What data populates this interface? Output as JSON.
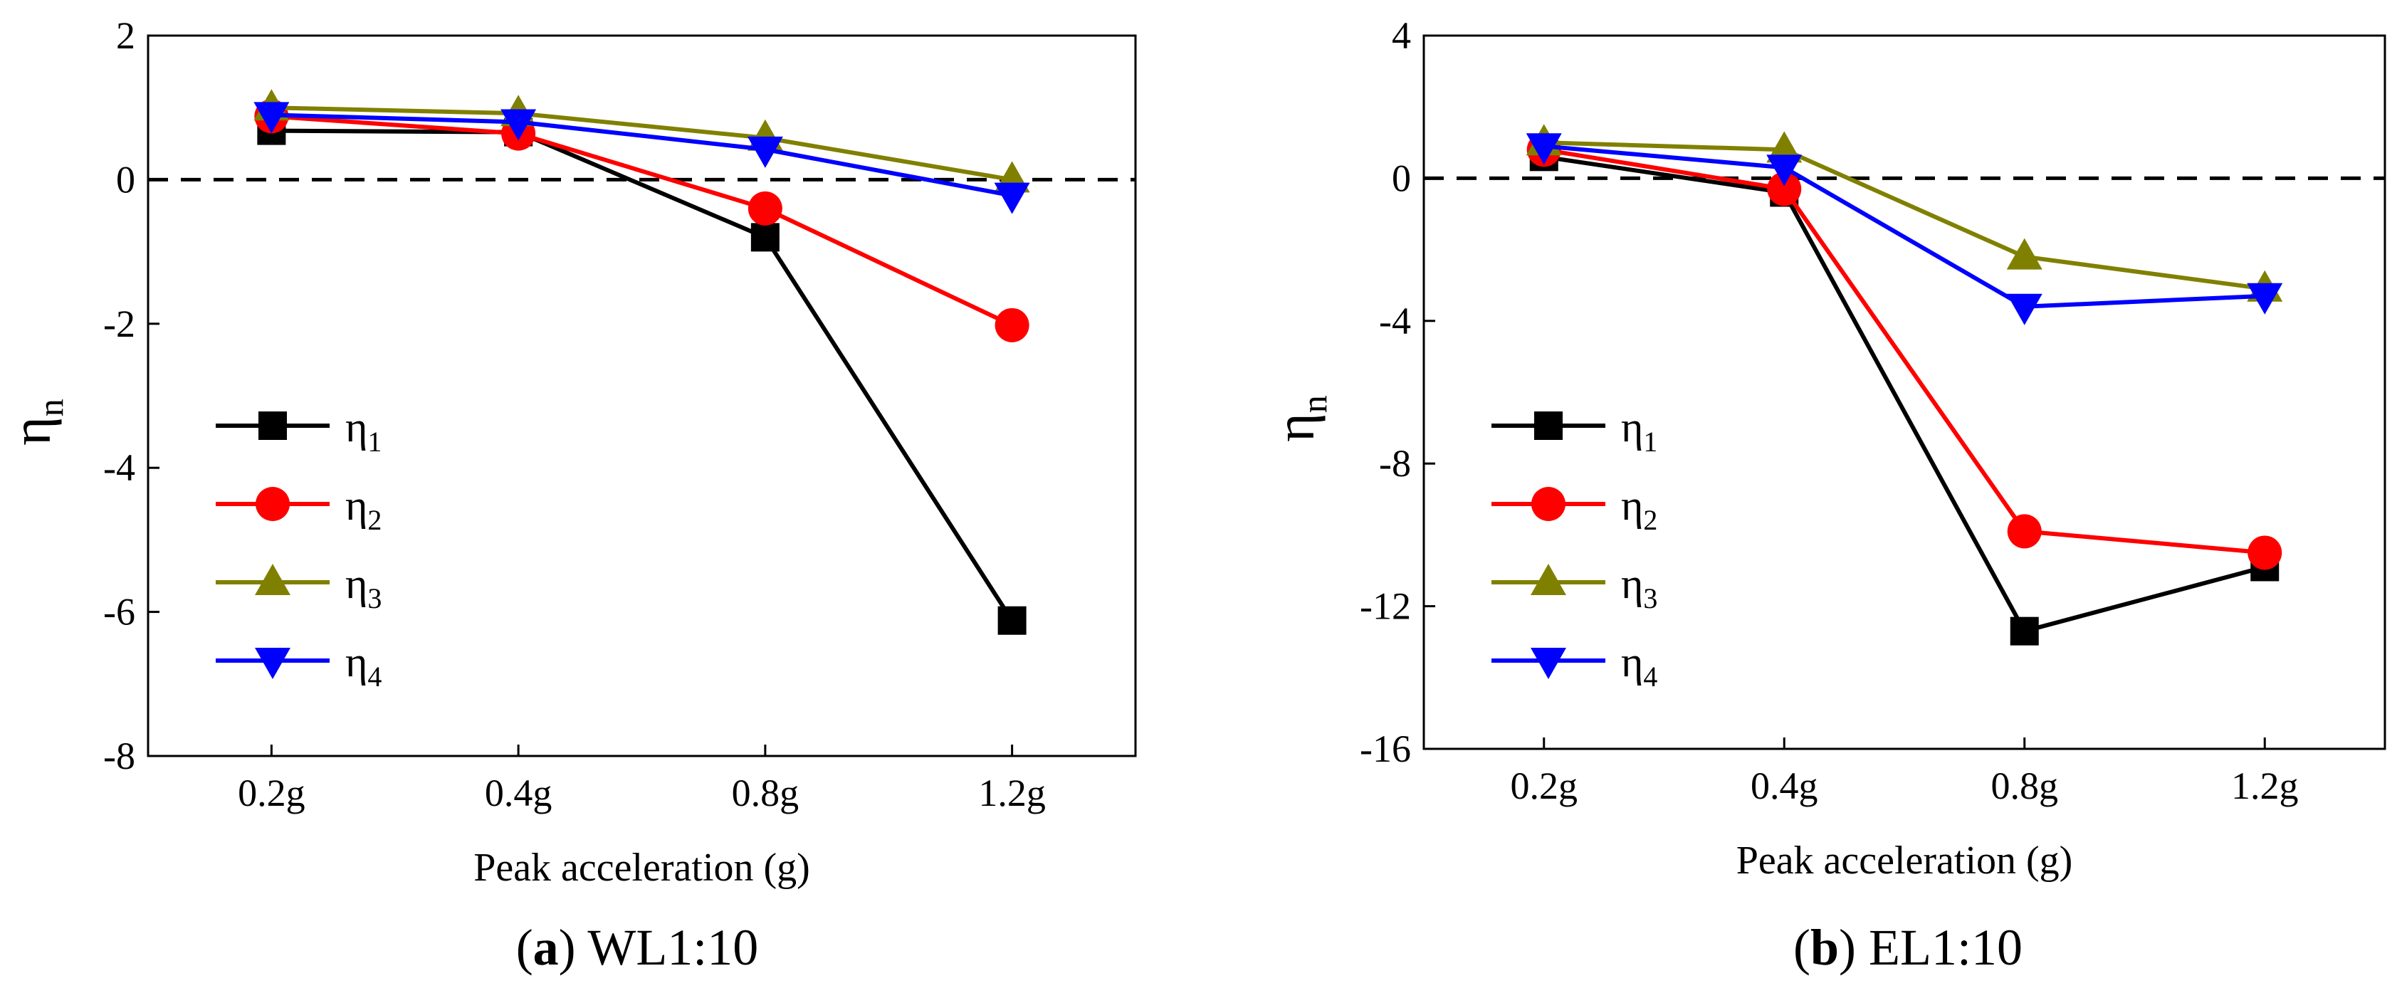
{
  "chart_data": [
    {
      "type": "line",
      "caption_letter": "a",
      "caption_text": "WL1:10",
      "xlabel": "Peak acceleration (g)",
      "ylabel_main": "η",
      "ylabel_sub": "n",
      "categories": [
        "0.2g",
        "0.4g",
        "0.8g",
        "1.2g"
      ],
      "ylim": [
        -8,
        2
      ],
      "yticks": [
        2,
        0,
        -2,
        -4,
        -6,
        -8
      ],
      "reference_line": 0,
      "grid": false,
      "legend_position": "lower-left",
      "series": [
        {
          "name": "η",
          "sub": "1",
          "color": "#000000",
          "marker": "square",
          "values": [
            0.68,
            0.66,
            -0.8,
            -6.12
          ]
        },
        {
          "name": "η",
          "sub": "2",
          "color": "#ff0000",
          "marker": "circle",
          "values": [
            0.88,
            0.64,
            -0.4,
            -2.02
          ]
        },
        {
          "name": "η",
          "sub": "3",
          "color": "#808000",
          "marker": "triangle-up",
          "values": [
            1.0,
            0.92,
            0.58,
            0.0
          ]
        },
        {
          "name": "η",
          "sub": "4",
          "color": "#0000ff",
          "marker": "triangle-down",
          "values": [
            0.9,
            0.8,
            0.42,
            -0.22
          ]
        }
      ]
    },
    {
      "type": "line",
      "caption_letter": "b",
      "caption_text": "EL1:10",
      "xlabel": "Peak acceleration (g)",
      "ylabel_main": "η",
      "ylabel_sub": "n",
      "categories": [
        "0.2g",
        "0.4g",
        "0.8g",
        "1.2g"
      ],
      "ylim": [
        -16,
        4
      ],
      "yticks": [
        4,
        0,
        -4,
        -8,
        -12,
        -16
      ],
      "reference_line": 0,
      "grid": false,
      "legend_position": "lower-left",
      "series": [
        {
          "name": "η",
          "sub": "1",
          "color": "#000000",
          "marker": "square",
          "values": [
            0.6,
            -0.4,
            -12.7,
            -10.9
          ]
        },
        {
          "name": "η",
          "sub": "2",
          "color": "#ff0000",
          "marker": "circle",
          "values": [
            0.8,
            -0.3,
            -9.9,
            -10.5
          ]
        },
        {
          "name": "η",
          "sub": "3",
          "color": "#808000",
          "marker": "triangle-up",
          "values": [
            1.0,
            0.8,
            -2.2,
            -3.1
          ]
        },
        {
          "name": "η",
          "sub": "4",
          "color": "#0000ff",
          "marker": "triangle-down",
          "values": [
            0.9,
            0.3,
            -3.6,
            -3.3
          ]
        }
      ]
    }
  ]
}
